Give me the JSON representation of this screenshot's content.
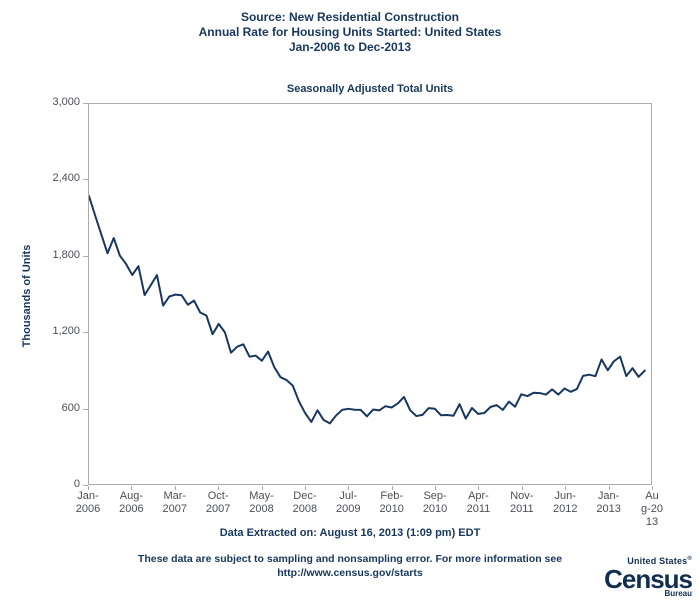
{
  "header": {
    "title_line1": "Source: New Residential Construction",
    "title_line2": "Annual Rate for Housing Units Started: United States",
    "title_line3": "Jan-2006 to Dec-2013"
  },
  "footer": {
    "extracted": "Data Extracted on: August 16, 2013 (1:09 pm) EDT",
    "disclaimer": "These data are subject to sampling and nonsampling error. For more information see",
    "url": "http://www.census.gov/starts"
  },
  "logo": {
    "top": "United States",
    "registered": "®",
    "main": "Census",
    "sub": "Bureau"
  },
  "chart_data": {
    "type": "line",
    "title": "Seasonally Adjusted Total Units",
    "ylabel": "Thousands of Units",
    "frequency": "monthly",
    "x_start": "Jan-2006",
    "x_end": "Jul-2013",
    "x_axis_span_months": 91,
    "ylim": [
      0,
      3000
    ],
    "grid": false,
    "legend": "none",
    "line_color": "#17375e",
    "ytick_values": [
      0,
      600,
      1200,
      1800,
      2400,
      3000
    ],
    "ytick_labels": [
      "0",
      "600",
      "1,200",
      "1,800",
      "2,400",
      "3,000"
    ],
    "xtick_month_indices": [
      0,
      7,
      14,
      21,
      28,
      35,
      42,
      49,
      56,
      63,
      70,
      77,
      84,
      91
    ],
    "xtick_labels": [
      [
        "Jan-",
        "2006"
      ],
      [
        "Aug-",
        "2006"
      ],
      [
        "Mar-",
        "2007"
      ],
      [
        "Oct-",
        "2007"
      ],
      [
        "May-",
        "2008"
      ],
      [
        "Dec-",
        "2008"
      ],
      [
        "Jul-",
        "2009"
      ],
      [
        "Feb-",
        "2010"
      ],
      [
        "Sep-",
        "2010"
      ],
      [
        "Apr-",
        "2011"
      ],
      [
        "Nov-",
        "2011"
      ],
      [
        "Jun-",
        "2012"
      ],
      [
        "Jan-",
        "2013"
      ],
      [
        "Au",
        "g-20",
        "13"
      ]
    ],
    "months": [
      "2006-01",
      "2006-02",
      "2006-03",
      "2006-04",
      "2006-05",
      "2006-06",
      "2006-07",
      "2006-08",
      "2006-09",
      "2006-10",
      "2006-11",
      "2006-12",
      "2007-01",
      "2007-02",
      "2007-03",
      "2007-04",
      "2007-05",
      "2007-06",
      "2007-07",
      "2007-08",
      "2007-09",
      "2007-10",
      "2007-11",
      "2007-12",
      "2008-01",
      "2008-02",
      "2008-03",
      "2008-04",
      "2008-05",
      "2008-06",
      "2008-07",
      "2008-08",
      "2008-09",
      "2008-10",
      "2008-11",
      "2008-12",
      "2009-01",
      "2009-02",
      "2009-03",
      "2009-04",
      "2009-05",
      "2009-06",
      "2009-07",
      "2009-08",
      "2009-09",
      "2009-10",
      "2009-11",
      "2009-12",
      "2010-01",
      "2010-02",
      "2010-03",
      "2010-04",
      "2010-05",
      "2010-06",
      "2010-07",
      "2010-08",
      "2010-09",
      "2010-10",
      "2010-11",
      "2010-12",
      "2011-01",
      "2011-02",
      "2011-03",
      "2011-04",
      "2011-05",
      "2011-06",
      "2011-07",
      "2011-08",
      "2011-09",
      "2011-10",
      "2011-11",
      "2011-12",
      "2012-01",
      "2012-02",
      "2012-03",
      "2012-04",
      "2012-05",
      "2012-06",
      "2012-07",
      "2012-08",
      "2012-09",
      "2012-10",
      "2012-11",
      "2012-12",
      "2013-01",
      "2013-02",
      "2013-03",
      "2013-04",
      "2013-05",
      "2013-06",
      "2013-07"
    ],
    "values": [
      2273,
      2119,
      1969,
      1821,
      1942,
      1802,
      1737,
      1650,
      1720,
      1491,
      1570,
      1649,
      1409,
      1480,
      1495,
      1490,
      1415,
      1448,
      1354,
      1330,
      1183,
      1264,
      1197,
      1037,
      1084,
      1103,
      1005,
      1013,
      973,
      1046,
      923,
      844,
      820,
      777,
      652,
      560,
      490,
      582,
      505,
      478,
      540,
      585,
      594,
      586,
      585,
      534,
      588,
      581,
      614,
      604,
      636,
      687,
      583,
      536,
      546,
      599,
      594,
      543,
      545,
      539,
      630,
      517,
      600,
      554,
      561,
      608,
      623,
      585,
      650,
      610,
      708,
      694,
      720,
      718,
      706,
      747,
      706,
      754,
      728,
      749,
      854,
      863,
      851,
      983,
      898,
      969,
      1005,
      852,
      914,
      846,
      896
    ]
  }
}
